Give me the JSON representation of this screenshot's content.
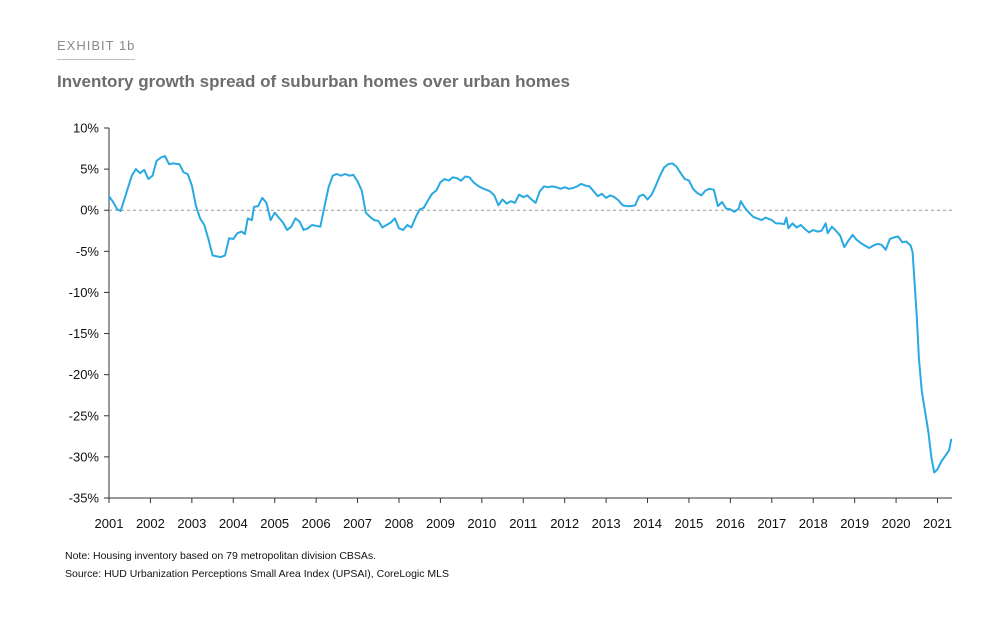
{
  "header": {
    "exhibit_label": "EXHIBIT 1b",
    "title": "Inventory growth spread of suburban homes over urban homes"
  },
  "footer": {
    "note": "Note: Housing inventory based on 79 metropolitan division CBSAs.",
    "source": "Source: HUD Urbanization Perceptions Small Area Index (UPSAI), CoreLogic MLS"
  },
  "colors": {
    "line": "#29a9e1",
    "axis": "#333333",
    "zero_line": "#999999"
  },
  "chart_data": {
    "type": "line",
    "title": "Inventory growth spread of suburban homes over urban homes",
    "xlabel": "",
    "ylabel": "",
    "xlim": [
      2001,
      2021.35
    ],
    "ylim": [
      -35,
      10
    ],
    "x_ticks": [
      2001,
      2002,
      2003,
      2004,
      2005,
      2006,
      2007,
      2008,
      2009,
      2010,
      2011,
      2012,
      2013,
      2014,
      2015,
      2016,
      2017,
      2018,
      2019,
      2020,
      2021
    ],
    "y_ticks": [
      10,
      5,
      0,
      -5,
      -10,
      -15,
      -20,
      -25,
      -30,
      -35
    ],
    "y_tick_labels": [
      "10%",
      "5%",
      "0%",
      "-5%",
      "-10%",
      "-15%",
      "-20%",
      "-25%",
      "-30%",
      "-35%"
    ],
    "zero_reference_line": true,
    "grid": false,
    "series": [
      {
        "points": [
          [
            2001.0,
            1.7
          ],
          [
            2001.1,
            1.0
          ],
          [
            2001.2,
            0.1
          ],
          [
            2001.28,
            -0.1
          ],
          [
            2001.4,
            1.8
          ],
          [
            2001.55,
            4.2
          ],
          [
            2001.65,
            5.0
          ],
          [
            2001.75,
            4.5
          ],
          [
            2001.85,
            4.9
          ],
          [
            2001.95,
            3.8
          ],
          [
            2002.05,
            4.2
          ],
          [
            2002.15,
            6.0
          ],
          [
            2002.25,
            6.4
          ],
          [
            2002.35,
            6.6
          ],
          [
            2002.45,
            5.6
          ],
          [
            2002.55,
            5.7
          ],
          [
            2002.7,
            5.6
          ],
          [
            2002.8,
            4.6
          ],
          [
            2002.9,
            4.4
          ],
          [
            2003.0,
            3.0
          ],
          [
            2003.1,
            0.5
          ],
          [
            2003.2,
            -1.0
          ],
          [
            2003.3,
            -1.8
          ],
          [
            2003.4,
            -3.5
          ],
          [
            2003.5,
            -5.5
          ],
          [
            2003.6,
            -5.6
          ],
          [
            2003.7,
            -5.7
          ],
          [
            2003.8,
            -5.5
          ],
          [
            2003.9,
            -3.4
          ],
          [
            2004.0,
            -3.5
          ],
          [
            2004.1,
            -2.8
          ],
          [
            2004.2,
            -2.6
          ],
          [
            2004.28,
            -2.9
          ],
          [
            2004.35,
            -1.0
          ],
          [
            2004.45,
            -1.2
          ],
          [
            2004.5,
            0.4
          ],
          [
            2004.6,
            0.5
          ],
          [
            2004.7,
            1.5
          ],
          [
            2004.8,
            0.9
          ],
          [
            2004.9,
            -1.2
          ],
          [
            2005.0,
            -0.3
          ],
          [
            2005.1,
            -0.9
          ],
          [
            2005.2,
            -1.5
          ],
          [
            2005.3,
            -2.4
          ],
          [
            2005.4,
            -2.0
          ],
          [
            2005.5,
            -1.0
          ],
          [
            2005.6,
            -1.4
          ],
          [
            2005.7,
            -2.4
          ],
          [
            2005.8,
            -2.2
          ],
          [
            2005.9,
            -1.8
          ],
          [
            2006.0,
            -1.9
          ],
          [
            2006.1,
            -2.0
          ],
          [
            2006.2,
            0.4
          ],
          [
            2006.3,
            2.8
          ],
          [
            2006.4,
            4.2
          ],
          [
            2006.5,
            4.4
          ],
          [
            2006.6,
            4.2
          ],
          [
            2006.7,
            4.4
          ],
          [
            2006.8,
            4.2
          ],
          [
            2006.9,
            4.3
          ],
          [
            2007.0,
            3.5
          ],
          [
            2007.1,
            2.4
          ],
          [
            2007.2,
            -0.3
          ],
          [
            2007.3,
            -0.8
          ],
          [
            2007.4,
            -1.2
          ],
          [
            2007.5,
            -1.3
          ],
          [
            2007.6,
            -2.1
          ],
          [
            2007.7,
            -1.8
          ],
          [
            2007.8,
            -1.5
          ],
          [
            2007.9,
            -1.0
          ],
          [
            2008.0,
            -2.2
          ],
          [
            2008.1,
            -2.4
          ],
          [
            2008.2,
            -1.8
          ],
          [
            2008.3,
            -2.1
          ],
          [
            2008.4,
            -0.9
          ],
          [
            2008.5,
            0.1
          ],
          [
            2008.6,
            0.3
          ],
          [
            2008.7,
            1.2
          ],
          [
            2008.8,
            2.0
          ],
          [
            2008.9,
            2.4
          ],
          [
            2009.0,
            3.4
          ],
          [
            2009.1,
            3.8
          ],
          [
            2009.2,
            3.6
          ],
          [
            2009.3,
            4.0
          ],
          [
            2009.4,
            3.9
          ],
          [
            2009.5,
            3.6
          ],
          [
            2009.6,
            4.1
          ],
          [
            2009.7,
            4.0
          ],
          [
            2009.8,
            3.4
          ],
          [
            2009.9,
            3.0
          ],
          [
            2010.0,
            2.7
          ],
          [
            2010.1,
            2.5
          ],
          [
            2010.2,
            2.3
          ],
          [
            2010.3,
            1.8
          ],
          [
            2010.4,
            0.6
          ],
          [
            2010.5,
            1.3
          ],
          [
            2010.6,
            0.8
          ],
          [
            2010.7,
            1.1
          ],
          [
            2010.8,
            0.9
          ],
          [
            2010.9,
            1.9
          ],
          [
            2011.0,
            1.6
          ],
          [
            2011.1,
            1.8
          ],
          [
            2011.2,
            1.3
          ],
          [
            2011.3,
            0.9
          ],
          [
            2011.4,
            2.3
          ],
          [
            2011.5,
            2.9
          ],
          [
            2011.6,
            2.8
          ],
          [
            2011.7,
            2.9
          ],
          [
            2011.8,
            2.8
          ],
          [
            2011.9,
            2.6
          ],
          [
            2012.0,
            2.8
          ],
          [
            2012.1,
            2.6
          ],
          [
            2012.2,
            2.7
          ],
          [
            2012.3,
            2.9
          ],
          [
            2012.4,
            3.2
          ],
          [
            2012.5,
            3.0
          ],
          [
            2012.6,
            2.9
          ],
          [
            2012.7,
            2.3
          ],
          [
            2012.8,
            1.7
          ],
          [
            2012.9,
            2.0
          ],
          [
            2013.0,
            1.5
          ],
          [
            2013.1,
            1.8
          ],
          [
            2013.2,
            1.6
          ],
          [
            2013.3,
            1.2
          ],
          [
            2013.4,
            0.6
          ],
          [
            2013.5,
            0.5
          ],
          [
            2013.6,
            0.5
          ],
          [
            2013.7,
            0.6
          ],
          [
            2013.8,
            1.7
          ],
          [
            2013.9,
            1.9
          ],
          [
            2014.0,
            1.3
          ],
          [
            2014.1,
            1.9
          ],
          [
            2014.2,
            3.0
          ],
          [
            2014.3,
            4.2
          ],
          [
            2014.4,
            5.2
          ],
          [
            2014.5,
            5.6
          ],
          [
            2014.6,
            5.7
          ],
          [
            2014.7,
            5.3
          ],
          [
            2014.8,
            4.5
          ],
          [
            2014.9,
            3.8
          ],
          [
            2015.0,
            3.6
          ],
          [
            2015.1,
            2.6
          ],
          [
            2015.2,
            2.1
          ],
          [
            2015.3,
            1.8
          ],
          [
            2015.4,
            2.4
          ],
          [
            2015.5,
            2.6
          ],
          [
            2015.6,
            2.5
          ],
          [
            2015.7,
            0.5
          ],
          [
            2015.8,
            1.0
          ],
          [
            2015.9,
            0.2
          ],
          [
            2016.0,
            0.1
          ],
          [
            2016.1,
            -0.2
          ],
          [
            2016.2,
            0.2
          ],
          [
            2016.25,
            1.1
          ],
          [
            2016.35,
            0.3
          ],
          [
            2016.45,
            -0.3
          ],
          [
            2016.55,
            -0.8
          ],
          [
            2016.65,
            -1.0
          ],
          [
            2016.75,
            -1.2
          ],
          [
            2016.85,
            -0.9
          ],
          [
            2016.95,
            -1.1
          ],
          [
            2017.0,
            -1.2
          ],
          [
            2017.1,
            -1.6
          ],
          [
            2017.2,
            -1.6
          ],
          [
            2017.3,
            -1.7
          ],
          [
            2017.35,
            -0.9
          ],
          [
            2017.4,
            -2.2
          ],
          [
            2017.5,
            -1.6
          ],
          [
            2017.6,
            -2.1
          ],
          [
            2017.7,
            -1.8
          ],
          [
            2017.8,
            -2.3
          ],
          [
            2017.9,
            -2.7
          ],
          [
            2018.0,
            -2.4
          ],
          [
            2018.1,
            -2.6
          ],
          [
            2018.2,
            -2.5
          ],
          [
            2018.3,
            -1.6
          ],
          [
            2018.35,
            -2.8
          ],
          [
            2018.45,
            -2.0
          ],
          [
            2018.55,
            -2.5
          ],
          [
            2018.65,
            -3.1
          ],
          [
            2018.75,
            -4.5
          ],
          [
            2018.85,
            -3.7
          ],
          [
            2018.95,
            -3.0
          ],
          [
            2019.05,
            -3.6
          ],
          [
            2019.15,
            -4.0
          ],
          [
            2019.25,
            -4.3
          ],
          [
            2019.35,
            -4.6
          ],
          [
            2019.45,
            -4.3
          ],
          [
            2019.55,
            -4.1
          ],
          [
            2019.65,
            -4.2
          ],
          [
            2019.75,
            -4.8
          ],
          [
            2019.85,
            -3.5
          ],
          [
            2019.95,
            -3.3
          ],
          [
            2020.05,
            -3.2
          ],
          [
            2020.15,
            -3.9
          ],
          [
            2020.25,
            -3.8
          ],
          [
            2020.35,
            -4.3
          ],
          [
            2020.4,
            -5.1
          ],
          [
            2020.45,
            -9.0
          ],
          [
            2020.5,
            -13.0
          ],
          [
            2020.55,
            -18.0
          ],
          [
            2020.62,
            -22.0
          ],
          [
            2020.7,
            -24.5
          ],
          [
            2020.78,
            -27.0
          ],
          [
            2020.85,
            -30.0
          ],
          [
            2020.92,
            -31.9
          ],
          [
            2021.0,
            -31.5
          ],
          [
            2021.1,
            -30.5
          ],
          [
            2021.2,
            -29.8
          ],
          [
            2021.28,
            -29.2
          ],
          [
            2021.33,
            -27.9
          ]
        ]
      }
    ]
  }
}
